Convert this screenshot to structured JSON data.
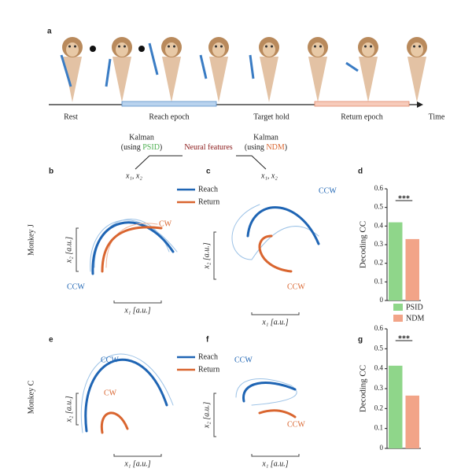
{
  "panel_a": {
    "label": "a",
    "epochs": [
      "Rest",
      "Reach epoch",
      "Target hold",
      "Return epoch"
    ],
    "time": "Time"
  },
  "flow": {
    "left_title": "Kalman",
    "left_using": "(using",
    "left_method": "PSID",
    "left_close": ")",
    "right_title": "Kalman",
    "right_using": "(using",
    "right_method": "NDM",
    "right_close": ")",
    "center": "Neural features",
    "left_states": "x₁, x₂",
    "right_states": "x₁, x₂"
  },
  "panels": {
    "b": "b",
    "c": "c",
    "d": "d",
    "e": "e",
    "f": "f",
    "g": "g"
  },
  "rows": [
    "Monkey J",
    "Monkey C"
  ],
  "trajectories": {
    "legend": [
      "Reach",
      "Return"
    ],
    "x_label": "x₁ [a.u.]",
    "y_label": "x₂ [a.u.]",
    "ccw": "CCW",
    "cw": "CW"
  },
  "chart_data": [
    {
      "type": "bar",
      "ylabel": "Decoding CC",
      "categories": [
        "PSID",
        "NDM"
      ],
      "values": [
        0.42,
        0.33
      ],
      "colors": [
        "#8fd68a",
        "#f2a488"
      ],
      "ylim": [
        0,
        0.6
      ],
      "yticks": [
        0,
        0.1,
        0.2,
        0.3,
        0.4,
        0.5,
        0.6
      ],
      "annotation": "***"
    },
    {
      "type": "bar",
      "ylabel": "Decoding CC",
      "categories": [
        "PSID",
        "NDM"
      ],
      "values": [
        0.415,
        0.265
      ],
      "colors": [
        "#8fd68a",
        "#f2a488"
      ],
      "ylim": [
        0,
        0.6
      ],
      "yticks": [
        0,
        0.1,
        0.2,
        0.3,
        0.4,
        0.5,
        0.6
      ],
      "annotation": "***"
    }
  ]
}
